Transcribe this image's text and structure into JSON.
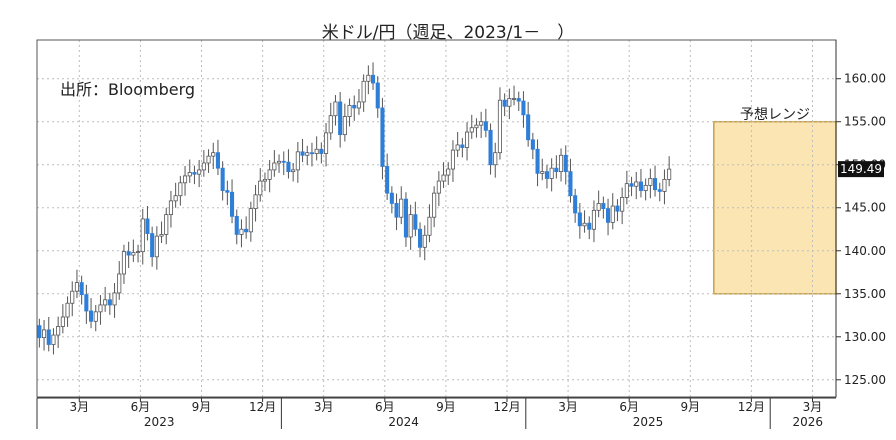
{
  "chart_data": {
    "type": "candlestick",
    "title": "米ドル/円（週足、2023/1－　）",
    "source_note": "出所：Bloomberg",
    "range_label": "予想レンジ",
    "current_label": "149.49",
    "current_value": 149.49,
    "forecast_range": [
      135,
      155
    ],
    "ylim": [
      123,
      164.5
    ],
    "y_ticks": [
      {
        "value": 125,
        "label": "125.00"
      },
      {
        "value": 130,
        "label": "130.00"
      },
      {
        "value": 135,
        "label": "135.00"
      },
      {
        "value": 140,
        "label": "140.00"
      },
      {
        "value": 145,
        "label": "145.00"
      },
      {
        "value": 150,
        "label": "150.00"
      },
      {
        "value": 155,
        "label": "155.00"
      },
      {
        "value": 160,
        "label": "160.00"
      }
    ],
    "x_ticks": [
      {
        "week": 9,
        "label": "3月"
      },
      {
        "week": 22,
        "label": "6月"
      },
      {
        "week": 35,
        "label": "9月"
      },
      {
        "week": 48,
        "label": "12月"
      },
      {
        "week": 61,
        "label": "3月"
      },
      {
        "week": 74,
        "label": "6月"
      },
      {
        "week": 87,
        "label": "9月"
      },
      {
        "week": 100,
        "label": "12月"
      },
      {
        "week": 113,
        "label": "3月"
      },
      {
        "week": 126,
        "label": "6月"
      },
      {
        "week": 139,
        "label": "9月"
      },
      {
        "week": 152,
        "label": "12月"
      },
      {
        "week": 165,
        "label": "3月"
      }
    ],
    "year_labels": [
      {
        "week": 26,
        "label": "2023"
      },
      {
        "week": 78,
        "label": "2024"
      },
      {
        "week": 130,
        "label": "2025"
      },
      {
        "week": 164,
        "label": "2026"
      }
    ],
    "week_range": [
      0,
      170
    ],
    "forecast_weeks": [
      144,
      170
    ],
    "closes": [
      129.9,
      130.8,
      129.1,
      130.2,
      131.2,
      132.3,
      133.9,
      135.3,
      136.3,
      134.9,
      133.0,
      131.8,
      132.9,
      133.7,
      134.3,
      133.7,
      135.1,
      137.3,
      139.9,
      139.5,
      139.8,
      139.9,
      143.7,
      142.0,
      139.3,
      141.7,
      141.9,
      144.2,
      145.8,
      146.4,
      147.9,
      148.7,
      149.1,
      148.9,
      149.4,
      150.2,
      151.0,
      151.4,
      149.6,
      147.0,
      146.8,
      144.0,
      141.9,
      142.5,
      142.2,
      144.9,
      146.5,
      148.1,
      148.3,
      149.4,
      150.2,
      150.4,
      150.3,
      149.2,
      149.4,
      151.5,
      151.1,
      151.4,
      151.3,
      151.8,
      151.3,
      153.7,
      155.7,
      157.3,
      153.5,
      155.6,
      156.9,
      156.6,
      157.3,
      159.7,
      160.4,
      159.5,
      156.6,
      149.8,
      146.7,
      145.5,
      143.9,
      146.0,
      141.6,
      144.2,
      142.5,
      140.4,
      141.8,
      143.9,
      146.7,
      148.1,
      148.8,
      149.5,
      151.7,
      152.3,
      152.0,
      153.8,
      154.3,
      154.6,
      155.0,
      154.0,
      150.0,
      151.4,
      157.5,
      156.8,
      157.7,
      157.7,
      157.4,
      155.8,
      152.9,
      151.8,
      149.0,
      149.2,
      148.4,
      149.6,
      149.2,
      151.1,
      149.2,
      146.4,
      144.4,
      142.9,
      143.2,
      142.5,
      144.7,
      145.5,
      144.9,
      143.3,
      145.2,
      144.6,
      146.2,
      147.8,
      147.5,
      148.0,
      147.0,
      147.6,
      148.4,
      147.1,
      146.9,
      148.3,
      149.49
    ]
  }
}
